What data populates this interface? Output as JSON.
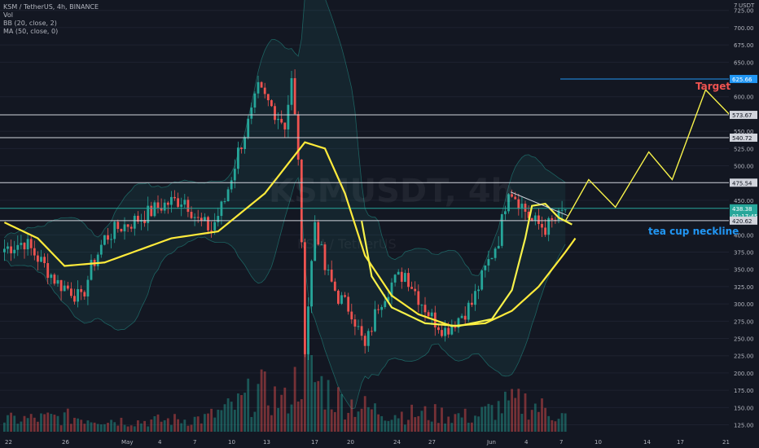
{
  "header": {
    "symbol_line": "KSM / TetherUS, 4h, BINANCE",
    "indicators": [
      "Vol",
      "BB (20, close, 2)",
      "MA (50, close, 0)"
    ]
  },
  "watermark": {
    "symbol": "KSMUSDT, 4h",
    "pair": "KSM / TetherUS"
  },
  "colors": {
    "background": "#131722",
    "up": "#26a69a",
    "down": "#ef5350",
    "ma": "#ffeb3b",
    "drawing": "#f7f24a",
    "target_line": "#2196f3",
    "annotation_blue": "#2196f3",
    "annotation_red": "#ef5350"
  },
  "chart_data": {
    "type": "candlestick",
    "x_axis_labels": [
      "22",
      "26",
      "May",
      "4",
      "7",
      "10",
      "13",
      "17",
      "20",
      "24",
      "27",
      "Jun",
      "4",
      "7",
      "10",
      "14",
      "17",
      "21"
    ],
    "y_axis": {
      "unit": "USDT",
      "ticks": [
        "725.00",
        "700.00",
        "675.00",
        "650.00",
        "600.00",
        "550.00",
        "525.00",
        "500.00",
        "450.00",
        "400.00",
        "375.00",
        "350.00",
        "325.00",
        "300.00",
        "275.00",
        "250.00",
        "225.00",
        "200.00",
        "175.00",
        "150.00",
        "125.00"
      ],
      "top_label": "7",
      "range": [
        115,
        740
      ],
      "scale": "linear"
    },
    "price_path": [
      [
        0,
        380
      ],
      [
        6,
        390
      ],
      [
        12,
        355
      ],
      [
        16,
        330
      ],
      [
        20,
        320
      ],
      [
        23,
        305
      ],
      [
        26,
        352
      ],
      [
        30,
        395
      ],
      [
        34,
        410
      ],
      [
        38,
        418
      ],
      [
        42,
        428
      ],
      [
        46,
        440
      ],
      [
        50,
        448
      ],
      [
        54,
        452
      ],
      [
        58,
        420
      ],
      [
        62,
        408
      ],
      [
        66,
        450
      ],
      [
        70,
        520
      ],
      [
        74,
        575
      ],
      [
        76,
        610
      ],
      [
        80,
        585
      ],
      [
        84,
        560
      ],
      [
        86,
        622
      ],
      [
        88,
        515
      ],
      [
        90,
        240
      ],
      [
        93,
        420
      ],
      [
        96,
        350
      ],
      [
        100,
        310
      ],
      [
        104,
        290
      ],
      [
        108,
        235
      ],
      [
        112,
        300
      ],
      [
        116,
        330
      ],
      [
        120,
        345
      ],
      [
        124,
        310
      ],
      [
        128,
        280
      ],
      [
        132,
        262
      ],
      [
        136,
        280
      ],
      [
        140,
        300
      ],
      [
        144,
        350
      ],
      [
        148,
        395
      ],
      [
        151,
        470
      ],
      [
        154,
        450
      ],
      [
        158,
        420
      ],
      [
        162,
        410
      ],
      [
        166,
        425
      ],
      [
        168,
        438
      ]
    ],
    "volume_path": [
      [
        0,
        0.08
      ],
      [
        20,
        0.1
      ],
      [
        40,
        0.07
      ],
      [
        60,
        0.09
      ],
      [
        70,
        0.18
      ],
      [
        76,
        0.28
      ],
      [
        84,
        0.2
      ],
      [
        90,
        0.45
      ],
      [
        93,
        0.35
      ],
      [
        100,
        0.22
      ],
      [
        110,
        0.15
      ],
      [
        120,
        0.12
      ],
      [
        130,
        0.12
      ],
      [
        140,
        0.1
      ],
      [
        150,
        0.18
      ],
      [
        156,
        0.2
      ],
      [
        168,
        0.1
      ]
    ],
    "ma_50": [
      [
        0,
        418
      ],
      [
        10,
        395
      ],
      [
        18,
        355
      ],
      [
        30,
        360
      ],
      [
        50,
        395
      ],
      [
        64,
        405
      ],
      [
        78,
        460
      ],
      [
        90,
        534
      ],
      [
        96,
        525
      ],
      [
        102,
        460
      ],
      [
        108,
        370
      ],
      [
        116,
        312
      ],
      [
        124,
        285
      ],
      [
        134,
        268
      ],
      [
        144,
        272
      ],
      [
        152,
        290
      ],
      [
        160,
        325
      ],
      [
        168,
        375
      ],
      [
        171,
        395
      ]
    ],
    "horizontal_levels": [
      {
        "price": 625.66,
        "label": "625.66",
        "color": "#2196f3"
      },
      {
        "price": 573.67,
        "label": "573.67",
        "color": "#d1d4dc"
      },
      {
        "price": 540.72,
        "label": "540.72",
        "color": "#d1d4dc"
      },
      {
        "price": 475.54,
        "label": "475.54",
        "color": "#d1d4dc"
      },
      {
        "price": 438.38,
        "label": "438.38",
        "color": "#26a69a"
      },
      {
        "price": 420.62,
        "label": "420.62",
        "color": "#d1d4dc"
      }
    ],
    "current_price": {
      "price": 438.38,
      "countdown": "01:17:45"
    },
    "projection_path": [
      [
        168,
        420
      ],
      [
        175,
        480
      ],
      [
        183,
        440
      ],
      [
        193,
        520
      ],
      [
        200,
        480
      ],
      [
        210,
        610
      ],
      [
        217,
        575
      ],
      [
        225,
        625
      ]
    ],
    "cup_curve": [
      [
        107,
        420
      ],
      [
        110,
        340
      ],
      [
        116,
        295
      ],
      [
        126,
        272
      ],
      [
        136,
        268
      ],
      [
        146,
        278
      ],
      [
        152,
        320
      ],
      [
        156,
        395
      ],
      [
        158,
        442
      ],
      [
        162,
        445
      ],
      [
        166,
        425
      ],
      [
        170,
        415
      ]
    ],
    "annotations": [
      {
        "text": "tea cup neckline",
        "price": 405,
        "color": "#2196f3"
      },
      {
        "text": "Target",
        "price": 615,
        "color": "#ef5350"
      }
    ]
  }
}
